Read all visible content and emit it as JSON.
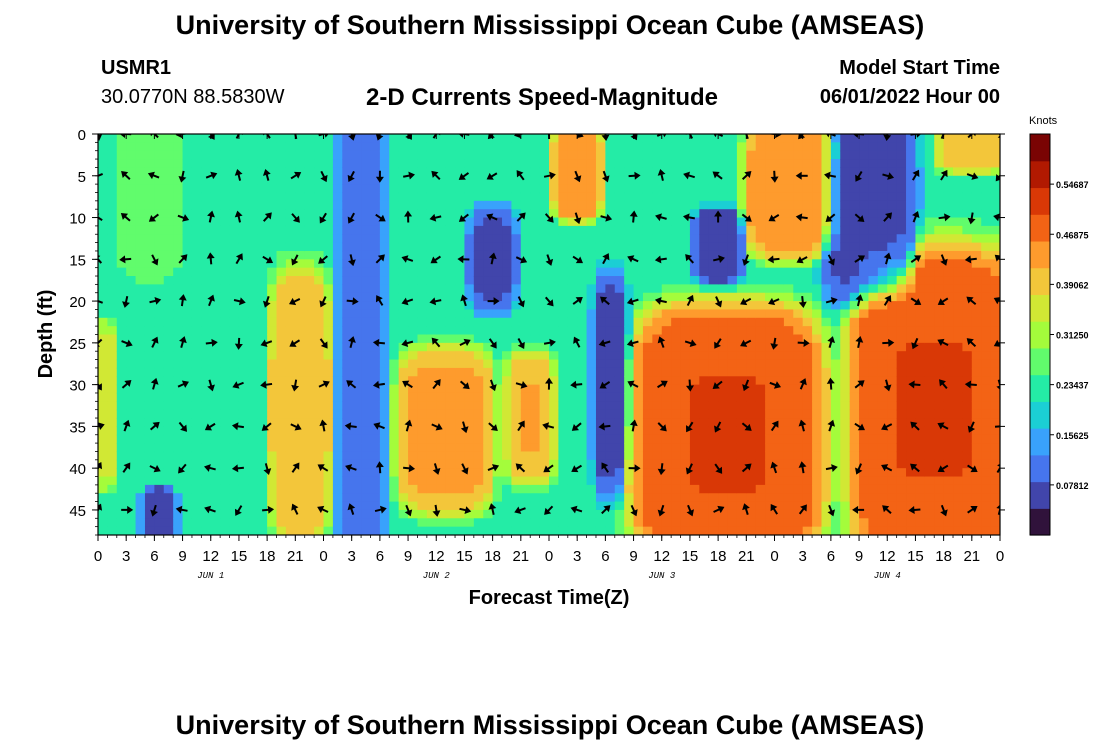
{
  "header": {
    "title": "University of Southern Mississippi Ocean Cube (AMSEAS)",
    "station_id": "USMR1",
    "coordinates": "30.0770N  88.5830W",
    "subtitle": "2-D Currents Speed-Magnitude",
    "model_start_label": "Model Start Time",
    "model_start_value": "06/01/2022 Hour 00"
  },
  "footer": {
    "title": "University of Southern Mississippi Ocean Cube (AMSEAS)"
  },
  "chart_data": {
    "type": "heatmap",
    "title": "2-D Currents Speed-Magnitude",
    "xlabel": "Forecast Time(Z)",
    "ylabel": "Depth (ft)",
    "x_tick_labels": [
      "0",
      "3",
      "6",
      "9",
      "12",
      "15",
      "18",
      "21",
      "0",
      "3",
      "6",
      "9",
      "12",
      "15",
      "18",
      "21",
      "0",
      "3",
      "6",
      "9",
      "12",
      "15",
      "18",
      "21",
      "0",
      "3",
      "6",
      "9",
      "12",
      "15",
      "18",
      "21",
      "0"
    ],
    "x_range_hours": [
      0,
      96
    ],
    "day_labels": [
      {
        "label": "JUN 1",
        "hour": 12
      },
      {
        "label": "JUN 2",
        "hour": 36
      },
      {
        "label": "JUN 3",
        "hour": 60
      },
      {
        "label": "JUN 4",
        "hour": 84
      }
    ],
    "y_ticks": [
      0,
      5,
      10,
      15,
      20,
      25,
      30,
      35,
      40,
      45
    ],
    "y_range_ft": [
      0,
      48
    ],
    "colorbar": {
      "unit": "Knots",
      "range": [
        0.0,
        0.625
      ],
      "ticks": [
        "0.54687",
        "0.46875",
        "0.39062",
        "0.31250",
        "0.23437",
        "0.15625",
        "0.07812"
      ],
      "tick_values": [
        0.546875,
        0.46875,
        0.390625,
        0.3125,
        0.234375,
        0.15625,
        0.078125
      ],
      "colors": [
        "#30123b",
        "#4145ab",
        "#4675ed",
        "#39a2fc",
        "#1bcfd4",
        "#24eca6",
        "#61fc6c",
        "#a4fc3b",
        "#d1e834",
        "#f3c63a",
        "#fe9b2d",
        "#f36315",
        "#d93806",
        "#b11901",
        "#7a0403"
      ]
    },
    "speed_regions": [
      {
        "hour_range": [
          0,
          1
        ],
        "depth_range": [
          25,
          40
        ],
        "speed": 0.36
      },
      {
        "hour_range": [
          3,
          8
        ],
        "depth_range": [
          0,
          15
        ],
        "speed": 0.28
      },
      {
        "hour_range": [
          5,
          8
        ],
        "depth_range": [
          43,
          48
        ],
        "speed": 0.03
      },
      {
        "hour_range": [
          19,
          24
        ],
        "depth_range": [
          20,
          45
        ],
        "speed": 0.42
      },
      {
        "hour_range": [
          26,
          30
        ],
        "depth_range": [
          0,
          48
        ],
        "speed": 0.08
      },
      {
        "hour_range": [
          33,
          41
        ],
        "depth_range": [
          28,
          43
        ],
        "speed": 0.44
      },
      {
        "hour_range": [
          40,
          44
        ],
        "depth_range": [
          10,
          20
        ],
        "speed": 0.06
      },
      {
        "hour_range": [
          44,
          48
        ],
        "depth_range": [
          28,
          40
        ],
        "speed": 0.43
      },
      {
        "hour_range": [
          49,
          53
        ],
        "depth_range": [
          0,
          9
        ],
        "speed": 0.47
      },
      {
        "hour_range": [
          53,
          56
        ],
        "depth_range": [
          20,
          40
        ],
        "speed": 0.04
      },
      {
        "hour_range": [
          59,
          75
        ],
        "depth_range": [
          24,
          48
        ],
        "speed": 0.52
      },
      {
        "hour_range": [
          64,
          68
        ],
        "depth_range": [
          10,
          17
        ],
        "speed": 0.03
      },
      {
        "hour_range": [
          70,
          78
        ],
        "depth_range": [
          0,
          13
        ],
        "speed": 0.46
      },
      {
        "hour_range": [
          78,
          86
        ],
        "depth_range": [
          0,
          18
        ],
        "speed": 0.05
      },
      {
        "hour_range": [
          82,
          96
        ],
        "depth_range": [
          18,
          48
        ],
        "speed": 0.52
      },
      {
        "hour_range": [
          90,
          96
        ],
        "depth_range": [
          0,
          4
        ],
        "speed": 0.39
      }
    ],
    "vector_grid": {
      "hours_step": 3,
      "depths_ft": [
        0,
        5,
        10,
        15,
        20,
        25,
        30,
        35,
        40,
        45
      ]
    }
  }
}
